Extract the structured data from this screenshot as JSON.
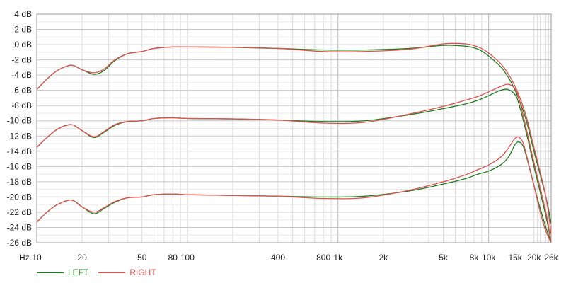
{
  "chart_data": {
    "type": "line",
    "x_scale": "log",
    "xlabel": "Hz",
    "ylabel": "",
    "xlim": [
      10,
      26000
    ],
    "ylim": [
      -26,
      4
    ],
    "y_ticks": [
      4,
      2,
      0,
      -2,
      -4,
      -6,
      -8,
      -10,
      -12,
      -14,
      -16,
      -18,
      -20,
      -22,
      -24,
      -26
    ],
    "y_tick_labels": [
      "4 dB",
      "2 dB",
      "0 dB",
      "-2 dB",
      "-4 dB",
      "-6 dB",
      "-8 dB",
      "-10 dB",
      "-12 dB",
      "-14 dB",
      "-16 dB",
      "-18 dB",
      "-20 dB",
      "-22 dB",
      "-24 dB",
      "-26 dB"
    ],
    "x_ticks": [
      10,
      20,
      50,
      80,
      100,
      400,
      800,
      1000,
      2000,
      5000,
      8000,
      10000,
      15000,
      20000,
      26000
    ],
    "x_tick_labels": [
      "10",
      "20",
      "50",
      "80",
      "100",
      "400",
      "800",
      "1k",
      "2k",
      "5k",
      "8k",
      "10k",
      "15k",
      "20k",
      "26k"
    ],
    "grid": true,
    "legend_position": "bottom-left",
    "legend": [
      {
        "label": "LEFT",
        "color": "#1e7b1e"
      },
      {
        "label": "RIGHT",
        "color": "#e05050"
      }
    ],
    "series": [
      {
        "name": "LEFT",
        "color": "#1e7b1e",
        "x": [
          10,
          12,
          14,
          17,
          20,
          24,
          28,
          33,
          40,
          50,
          60,
          80,
          100,
          200,
          400,
          800,
          1500,
          3000,
          5000,
          7000,
          8500,
          10000,
          12500,
          15000,
          17500,
          20000,
          24000,
          26000
        ],
        "y": [
          -5.9,
          -4.3,
          -3.3,
          -2.7,
          -3.3,
          -3.9,
          -3.4,
          -2.1,
          -1.2,
          -0.9,
          -0.5,
          -0.3,
          -0.3,
          -0.35,
          -0.5,
          -0.7,
          -0.7,
          -0.5,
          -0.1,
          -0.2,
          -0.6,
          -1.5,
          -3.3,
          -6.0,
          -9.5,
          -14.0,
          -20.0,
          -23.5
        ]
      },
      {
        "name": "RIGHT",
        "color": "#e05050",
        "x": [
          10,
          12,
          14,
          17,
          20,
          24,
          28,
          33,
          40,
          50,
          60,
          80,
          100,
          200,
          400,
          800,
          1500,
          3000,
          5000,
          7000,
          8500,
          10000,
          12500,
          15000,
          17500,
          20000,
          24000,
          26000
        ],
        "y": [
          -5.9,
          -4.3,
          -3.3,
          -2.7,
          -3.3,
          -3.7,
          -3.2,
          -2.0,
          -1.2,
          -0.9,
          -0.5,
          -0.3,
          -0.3,
          -0.35,
          -0.5,
          -0.9,
          -0.9,
          -0.6,
          0.1,
          0.1,
          -0.3,
          -1.1,
          -2.9,
          -5.5,
          -9.0,
          -13.5,
          -20.0,
          -25.0
        ]
      },
      {
        "name": "LEFT",
        "color": "#1e7b1e",
        "x": [
          10,
          12,
          14,
          17,
          20,
          24,
          28,
          33,
          40,
          50,
          60,
          80,
          100,
          200,
          400,
          800,
          1500,
          3000,
          5000,
          7000,
          8500,
          10000,
          12000,
          13500,
          15000,
          16000,
          18000,
          20000,
          24000,
          26000
        ],
        "y": [
          -13.5,
          -12.0,
          -11.0,
          -10.5,
          -11.3,
          -12.2,
          -11.5,
          -10.6,
          -10.1,
          -10.0,
          -9.7,
          -9.6,
          -9.7,
          -9.75,
          -9.9,
          -10.1,
          -10.0,
          -9.2,
          -8.4,
          -7.8,
          -7.3,
          -6.7,
          -6.0,
          -5.9,
          -6.6,
          -8.0,
          -12.0,
          -16.0,
          -22.5,
          -26.0
        ]
      },
      {
        "name": "RIGHT",
        "color": "#e05050",
        "x": [
          10,
          12,
          14,
          17,
          20,
          24,
          28,
          33,
          40,
          50,
          60,
          80,
          100,
          200,
          400,
          800,
          1500,
          3000,
          5000,
          7000,
          8500,
          10000,
          12000,
          13500,
          15000,
          16000,
          18000,
          20000,
          24000,
          26000
        ],
        "y": [
          -13.5,
          -12.0,
          -11.0,
          -10.5,
          -11.3,
          -12.1,
          -11.4,
          -10.5,
          -10.1,
          -10.0,
          -9.7,
          -9.6,
          -9.7,
          -9.75,
          -9.9,
          -10.3,
          -10.2,
          -9.1,
          -8.1,
          -7.3,
          -6.8,
          -6.2,
          -5.5,
          -5.2,
          -5.8,
          -7.3,
          -11.5,
          -15.5,
          -22.0,
          -26.0
        ]
      },
      {
        "name": "LEFT",
        "color": "#1e7b1e",
        "x": [
          10,
          12,
          14,
          17,
          20,
          24,
          28,
          33,
          40,
          50,
          60,
          80,
          100,
          200,
          400,
          800,
          1500,
          3000,
          5000,
          7000,
          8500,
          10000,
          12000,
          13500,
          15000,
          16000,
          17000,
          18000,
          20000,
          22000,
          24000,
          26000
        ],
        "y": [
          -23.3,
          -21.8,
          -20.9,
          -20.4,
          -21.3,
          -22.2,
          -21.5,
          -20.7,
          -20.1,
          -20.0,
          -19.7,
          -19.6,
          -19.7,
          -19.8,
          -19.9,
          -20.0,
          -19.9,
          -19.2,
          -18.3,
          -17.6,
          -17.0,
          -16.6,
          -15.8,
          -14.8,
          -13.1,
          -12.8,
          -13.4,
          -15.0,
          -18.5,
          -21.5,
          -24.0,
          -26.0
        ]
      },
      {
        "name": "RIGHT",
        "color": "#e05050",
        "x": [
          10,
          12,
          14,
          17,
          20,
          24,
          28,
          33,
          40,
          50,
          60,
          80,
          100,
          200,
          400,
          800,
          1500,
          3000,
          5000,
          7000,
          8500,
          10000,
          12000,
          13500,
          15000,
          16000,
          17000,
          18000,
          20000,
          22000,
          24000,
          26000
        ],
        "y": [
          -23.3,
          -21.8,
          -20.9,
          -20.4,
          -21.3,
          -22.0,
          -21.4,
          -20.6,
          -20.1,
          -20.0,
          -19.7,
          -19.6,
          -19.7,
          -19.8,
          -19.9,
          -20.2,
          -20.1,
          -19.1,
          -18.0,
          -17.1,
          -16.4,
          -15.8,
          -14.8,
          -13.6,
          -12.3,
          -12.2,
          -13.0,
          -14.8,
          -18.5,
          -22.0,
          -24.5,
          -26.0
        ]
      }
    ]
  },
  "legend_items": [
    {
      "label": "LEFT",
      "color": "#1e7b1e"
    },
    {
      "label": "RIGHT",
      "color": "#e05050"
    }
  ]
}
